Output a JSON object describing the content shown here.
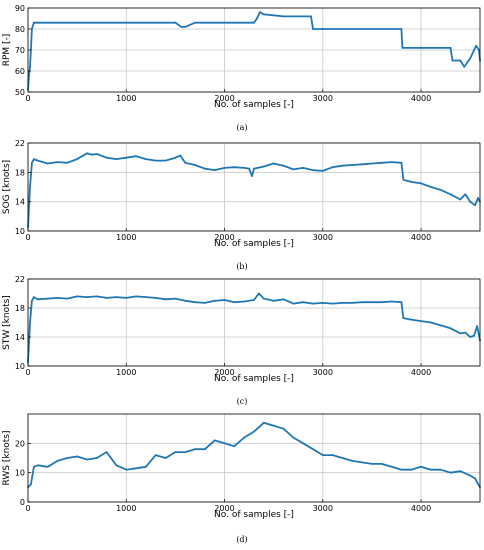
{
  "chart_data": [
    {
      "type": "line",
      "caption": "(a)",
      "xlabel": "No. of samples [-]",
      "ylabel": "RPM [-]",
      "xlim": [
        0,
        4600
      ],
      "ylim": [
        50,
        90
      ],
      "xticks": [
        0,
        1000,
        2000,
        3000,
        4000
      ],
      "yticks": [
        50,
        60,
        70,
        80,
        90
      ],
      "grid": true,
      "color": "#1f77b4",
      "series": [
        {
          "x": [
            0,
            10,
            20,
            30,
            40,
            60,
            80,
            100,
            1500,
            1560,
            1600,
            1700,
            2300,
            2330,
            2360,
            2400,
            2600,
            2880,
            2900,
            3000,
            3800,
            3810,
            4000,
            4300,
            4320,
            4400,
            4440,
            4470,
            4500,
            4560,
            4590,
            4600
          ],
          "y": [
            51,
            58,
            62,
            70,
            80,
            83,
            83,
            83,
            83,
            81,
            81,
            83,
            83,
            85,
            88,
            87,
            86,
            86,
            80,
            80,
            80,
            71,
            71,
            71,
            65,
            65,
            62,
            64,
            66,
            72,
            70,
            65
          ]
        }
      ]
    },
    {
      "type": "line",
      "caption": "(b)",
      "xlabel": "No. of samples [-]",
      "ylabel": "SOG [knots]",
      "xlim": [
        0,
        4600
      ],
      "ylim": [
        10,
        22
      ],
      "xticks": [
        0,
        1000,
        2000,
        3000,
        4000
      ],
      "yticks": [
        10,
        14,
        18,
        22
      ],
      "grid": true,
      "color": "#1f77b4",
      "series": [
        {
          "x": [
            0,
            20,
            40,
            60,
            100,
            200,
            300,
            400,
            500,
            550,
            600,
            650,
            700,
            800,
            900,
            1000,
            1100,
            1200,
            1300,
            1400,
            1500,
            1550,
            1600,
            1700,
            1800,
            1900,
            2000,
            2100,
            2200,
            2250,
            2280,
            2300,
            2400,
            2500,
            2600,
            2700,
            2800,
            2900,
            3000,
            3100,
            3200,
            3300,
            3400,
            3500,
            3600,
            3700,
            3800,
            3820,
            3900,
            4000,
            4100,
            4200,
            4300,
            4400,
            4450,
            4500,
            4550,
            4580,
            4600
          ],
          "y": [
            10.5,
            16,
            19.3,
            19.8,
            19.6,
            19.2,
            19.4,
            19.3,
            19.8,
            20.2,
            20.6,
            20.4,
            20.5,
            20.0,
            19.8,
            20.0,
            20.2,
            19.8,
            19.6,
            19.6,
            20.0,
            20.3,
            19.3,
            19.0,
            18.5,
            18.3,
            18.6,
            18.7,
            18.6,
            18.5,
            17.5,
            18.5,
            18.8,
            19.2,
            18.9,
            18.4,
            18.6,
            18.3,
            18.2,
            18.7,
            18.9,
            19.0,
            19.1,
            19.2,
            19.3,
            19.4,
            19.3,
            17.0,
            16.7,
            16.5,
            16.0,
            15.6,
            15.0,
            14.3,
            15.0,
            14.0,
            13.5,
            14.5,
            14.0
          ]
        }
      ]
    },
    {
      "type": "line",
      "caption": "(c)",
      "xlabel": "No. of samples [-]",
      "ylabel": "STW [knots]",
      "xlim": [
        0,
        4600
      ],
      "ylim": [
        10,
        22
      ],
      "xticks": [
        0,
        1000,
        2000,
        3000,
        4000
      ],
      "yticks": [
        10,
        14,
        18,
        22
      ],
      "grid": true,
      "color": "#1f77b4",
      "series": [
        {
          "x": [
            0,
            20,
            40,
            60,
            100,
            200,
            300,
            400,
            500,
            600,
            700,
            800,
            900,
            1000,
            1100,
            1200,
            1300,
            1400,
            1500,
            1600,
            1700,
            1800,
            1900,
            2000,
            2100,
            2200,
            2300,
            2350,
            2400,
            2500,
            2600,
            2700,
            2800,
            2900,
            3000,
            3100,
            3200,
            3300,
            3400,
            3500,
            3600,
            3700,
            3800,
            3820,
            3900,
            4000,
            4100,
            4200,
            4300,
            4400,
            4450,
            4500,
            4540,
            4570,
            4600
          ],
          "y": [
            10.5,
            16,
            19.0,
            19.5,
            19.2,
            19.3,
            19.4,
            19.3,
            19.6,
            19.5,
            19.6,
            19.4,
            19.5,
            19.4,
            19.6,
            19.5,
            19.4,
            19.2,
            19.3,
            19.0,
            18.8,
            18.7,
            19.0,
            19.1,
            18.8,
            18.9,
            19.1,
            20.0,
            19.3,
            19.0,
            19.2,
            18.6,
            18.8,
            18.6,
            18.7,
            18.6,
            18.7,
            18.7,
            18.8,
            18.8,
            18.8,
            18.9,
            18.8,
            16.6,
            16.4,
            16.2,
            16.0,
            15.6,
            15.2,
            14.5,
            14.6,
            14.0,
            14.2,
            15.5,
            13.5
          ]
        }
      ]
    },
    {
      "type": "line",
      "caption": "(d)",
      "xlabel": "No. of samples [-]",
      "ylabel": "RWS [knots]",
      "xlim": [
        0,
        4600
      ],
      "ylim": [
        0,
        30
      ],
      "xticks": [
        0,
        1000,
        2000,
        3000,
        4000
      ],
      "yticks": [
        0,
        10,
        20
      ],
      "grid": true,
      "color": "#1f77b4",
      "series": [
        {
          "x": [
            0,
            30,
            60,
            100,
            200,
            300,
            400,
            500,
            600,
            700,
            800,
            900,
            1000,
            1100,
            1200,
            1300,
            1400,
            1500,
            1600,
            1700,
            1800,
            1900,
            2000,
            2100,
            2200,
            2300,
            2400,
            2500,
            2600,
            2700,
            2800,
            2900,
            3000,
            3100,
            3200,
            3300,
            3400,
            3500,
            3600,
            3700,
            3800,
            3900,
            4000,
            4100,
            4200,
            4300,
            4400,
            4500,
            4550,
            4600
          ],
          "y": [
            5,
            6,
            12,
            12.5,
            12,
            14,
            15,
            15.5,
            14.5,
            15,
            17,
            12.5,
            11,
            11.5,
            12,
            16,
            15,
            17,
            17,
            18,
            18,
            21,
            20,
            19,
            22,
            24,
            27,
            26,
            25,
            22,
            20,
            18,
            16,
            16,
            15,
            14,
            13.5,
            13,
            13,
            12,
            11,
            11,
            12,
            11,
            11,
            10,
            10.5,
            9,
            8,
            5
          ]
        }
      ]
    }
  ]
}
